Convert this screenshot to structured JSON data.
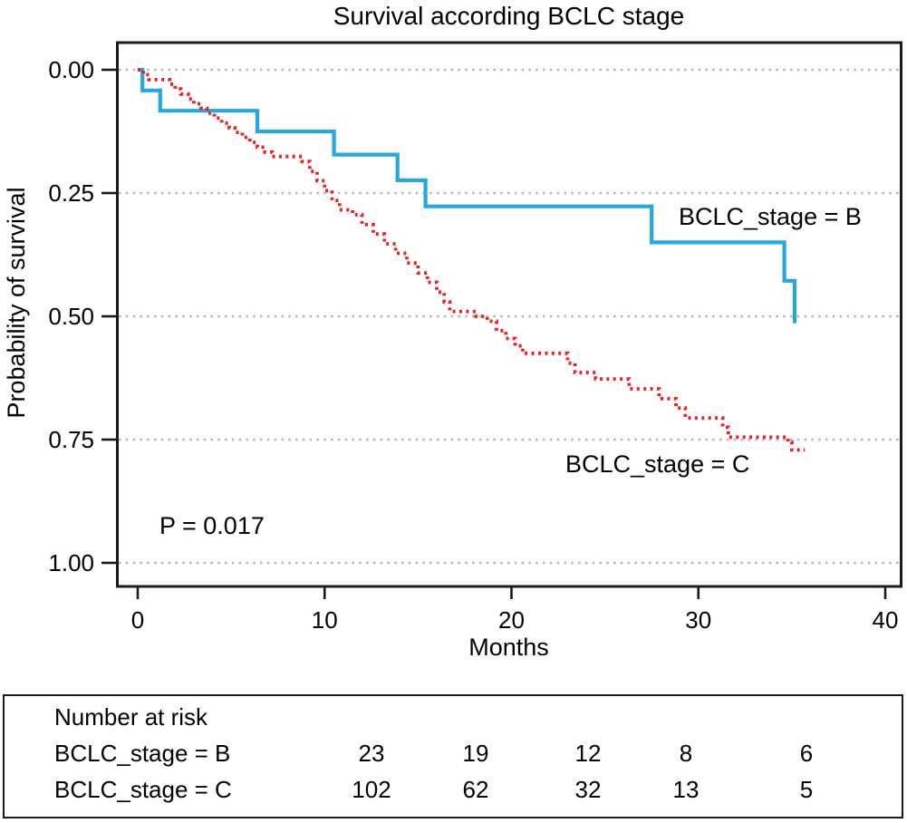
{
  "chart": {
    "title": "Survival according BCLC stage",
    "xlabel": "Months",
    "ylabel": "Probability of survival",
    "p_value": "P = 0.017"
  },
  "chart_data": {
    "type": "line",
    "subtype": "kaplan-meier-step-curves",
    "title": "Survival according BCLC stage",
    "xlabel": "Months",
    "ylabel": "Probability of survival",
    "xlim": [
      0,
      40
    ],
    "ylim": [
      0,
      1
    ],
    "y_axis_direction": "0.00 at top, 1.00 at bottom",
    "grid": "horizontal dotted lines at each y tick",
    "legend_position": "inline labels next to curves",
    "x_ticks": [
      {
        "value": 0,
        "label": "0"
      },
      {
        "value": 10,
        "label": "10"
      },
      {
        "value": 20,
        "label": "20"
      },
      {
        "value": 30,
        "label": "30"
      },
      {
        "value": 40,
        "label": "40"
      }
    ],
    "y_ticks": [
      {
        "value": 0.0,
        "label": "0.00"
      },
      {
        "value": 0.25,
        "label": "0.25"
      },
      {
        "value": 0.5,
        "label": "0.50"
      },
      {
        "value": 0.75,
        "label": "0.75"
      },
      {
        "value": 1.0,
        "label": "1.00"
      }
    ],
    "annotations": [
      {
        "text": "BCLC_stage = B",
        "anchor_month": 34.2,
        "anchor_prob": 0.3
      },
      {
        "text": "BCLC_stage = C",
        "anchor_month": 28.3,
        "anchor_prob": 0.8
      },
      {
        "text": "P = 0.017",
        "anchor_month": 1.2,
        "anchor_prob": 0.91
      }
    ],
    "series": [
      {
        "name": "BCLC_stage = B",
        "color": "#25a8e0",
        "line_style": "solid",
        "points_month_prob": [
          [
            0,
            0
          ],
          [
            0.25,
            0.042
          ],
          [
            1.2,
            0.083
          ],
          [
            6.4,
            0.125
          ],
          [
            10.5,
            0.172
          ],
          [
            13.9,
            0.224
          ],
          [
            15.4,
            0.277
          ],
          [
            27.5,
            0.35
          ],
          [
            34.6,
            0.428
          ],
          [
            35.15,
            0.514
          ]
        ]
      },
      {
        "name": "BCLC_stage = C",
        "color": "#eb2026",
        "line_style": "dotted",
        "points_month_prob": [
          [
            0,
            0
          ],
          [
            0.3,
            0.01
          ],
          [
            0.6,
            0.02
          ],
          [
            1.7,
            0.029
          ],
          [
            2.0,
            0.039
          ],
          [
            2.3,
            0.049
          ],
          [
            2.7,
            0.059
          ],
          [
            3.0,
            0.069
          ],
          [
            3.4,
            0.078
          ],
          [
            3.7,
            0.088
          ],
          [
            4.1,
            0.098
          ],
          [
            4.5,
            0.108
          ],
          [
            4.9,
            0.118
          ],
          [
            5.2,
            0.127
          ],
          [
            5.6,
            0.137
          ],
          [
            6.0,
            0.147
          ],
          [
            6.4,
            0.157
          ],
          [
            6.8,
            0.167
          ],
          [
            7.2,
            0.176
          ],
          [
            8.8,
            0.186
          ],
          [
            9.2,
            0.206
          ],
          [
            9.6,
            0.225
          ],
          [
            10.0,
            0.245
          ],
          [
            10.4,
            0.265
          ],
          [
            10.8,
            0.284
          ],
          [
            11.5,
            0.294
          ],
          [
            12.0,
            0.314
          ],
          [
            12.6,
            0.333
          ],
          [
            13.2,
            0.353
          ],
          [
            13.8,
            0.372
          ],
          [
            14.4,
            0.392
          ],
          [
            15.0,
            0.412
          ],
          [
            15.5,
            0.431
          ],
          [
            16.0,
            0.451
          ],
          [
            16.4,
            0.471
          ],
          [
            16.7,
            0.49
          ],
          [
            18.1,
            0.5
          ],
          [
            18.7,
            0.51
          ],
          [
            19.2,
            0.529
          ],
          [
            19.7,
            0.545
          ],
          [
            20.2,
            0.56
          ],
          [
            20.6,
            0.575
          ],
          [
            23.0,
            0.595
          ],
          [
            23.4,
            0.614
          ],
          [
            24.5,
            0.627
          ],
          [
            26.3,
            0.647
          ],
          [
            27.9,
            0.667
          ],
          [
            28.8,
            0.686
          ],
          [
            29.3,
            0.706
          ],
          [
            31.3,
            0.725
          ],
          [
            31.6,
            0.745
          ],
          [
            34.8,
            0.755
          ],
          [
            35.0,
            0.771
          ],
          [
            35.7,
            0.771
          ]
        ]
      }
    ]
  },
  "risk_table": {
    "header": "Number at risk",
    "rows": [
      {
        "label": "BCLC_stage = B",
        "values": [
          "23",
          "19",
          "12",
          "8",
          "6"
        ]
      },
      {
        "label": "BCLC_stage = C",
        "values": [
          "102",
          "62",
          "32",
          "13",
          "5"
        ]
      }
    ]
  },
  "colors": {
    "stage_b": "#25a8e0",
    "stage_c": "#eb2026",
    "gridline": "#b8b8b8",
    "axis": "#1a1a1a"
  }
}
